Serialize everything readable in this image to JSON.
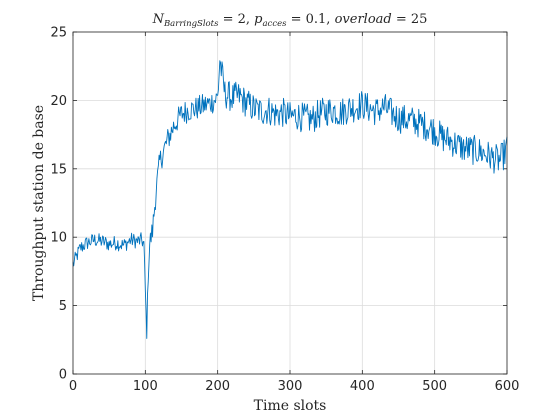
{
  "chart_data": {
    "type": "line",
    "title": {
      "n_symbol": "N",
      "n_subscript": "BarringSlots",
      "n_value": " = 2, ",
      "p_symbol": "p",
      "p_subscript": "acces",
      "p_value": " = 0.1, ",
      "overload_text": "overload",
      "overload_value": " = 25"
    },
    "xlabel": "Time slots",
    "ylabel": "Throughput station de base",
    "xlim": [
      0,
      600
    ],
    "ylim": [
      0,
      25
    ],
    "xticks": [
      "0",
      "100",
      "200",
      "300",
      "400",
      "500",
      "600"
    ],
    "yticks": [
      "0",
      "5",
      "10",
      "15",
      "20",
      "25"
    ],
    "grid": true,
    "line_color": "#0072bd",
    "series": [
      {
        "x": [
          0,
          10,
          20,
          30,
          40,
          50,
          60,
          70,
          80,
          90,
          95,
          98,
          100,
          102,
          104,
          106,
          110,
          115,
          120,
          130,
          140,
          150,
          160,
          170,
          180,
          190,
          200,
          203,
          210,
          220,
          230,
          240,
          250,
          260,
          270,
          280,
          290,
          300,
          310,
          320,
          330,
          340,
          350,
          360,
          370,
          380,
          390,
          400,
          410,
          420,
          430,
          440,
          450,
          460,
          470,
          480,
          490,
          500,
          510,
          520,
          530,
          540,
          550,
          560,
          570,
          580,
          590,
          595,
          600
        ],
        "y": [
          8,
          9.2,
          9.6,
          9.8,
          9.7,
          9.5,
          9.6,
          9.4,
          9.8,
          9.7,
          9.8,
          9.5,
          6,
          2.6,
          7.5,
          9.5,
          10.5,
          13.5,
          15.5,
          17,
          18.2,
          19,
          19.3,
          19.4,
          19.6,
          19.8,
          20.2,
          22.9,
          20.5,
          20.2,
          20.3,
          19.8,
          19.4,
          19.2,
          19.3,
          19,
          19.1,
          18.8,
          18.9,
          18.7,
          18.6,
          19,
          19.2,
          19.3,
          19.1,
          19.4,
          19.5,
          19.7,
          19.4,
          19.2,
          19.5,
          19.1,
          18.7,
          18.6,
          18.5,
          18.3,
          18.1,
          17.8,
          17.3,
          17.1,
          16.8,
          16.5,
          16.4,
          16.3,
          16.1,
          15.8,
          15.6,
          16,
          16.5
        ]
      }
    ]
  }
}
